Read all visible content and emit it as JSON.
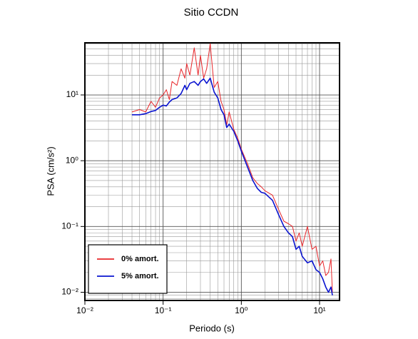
{
  "chart_data": {
    "type": "line",
    "title": "Sitio CCDN",
    "xlabel": "Periodo (s)",
    "ylabel": "PSA (cm/s²)",
    "xscale": "log",
    "yscale": "log",
    "grid": true,
    "legend": "lower left",
    "xlim": [
      0.01,
      18
    ],
    "ylim": [
      0.0075,
      62
    ],
    "xticks": [
      {
        "value": 0.01,
        "label": "10⁻²"
      },
      {
        "value": 0.1,
        "label": "10⁻¹"
      },
      {
        "value": 1,
        "label": "10⁰"
      },
      {
        "value": 10,
        "label": "10¹"
      }
    ],
    "yticks": [
      {
        "value": 0.01,
        "label": "10⁻²"
      },
      {
        "value": 0.1,
        "label": "10⁻¹"
      },
      {
        "value": 1,
        "label": "10⁰"
      },
      {
        "value": 10,
        "label": "10¹"
      }
    ],
    "x": [
      0.04,
      0.05,
      0.06,
      0.07,
      0.08,
      0.09,
      0.1,
      0.11,
      0.12,
      0.13,
      0.15,
      0.17,
      0.19,
      0.2,
      0.22,
      0.25,
      0.28,
      0.3,
      0.33,
      0.36,
      0.4,
      0.45,
      0.5,
      0.55,
      0.6,
      0.65,
      0.7,
      0.8,
      0.9,
      1.0,
      1.2,
      1.4,
      1.6,
      1.8,
      2.0,
      2.5,
      3.0,
      3.5,
      4.0,
      4.5,
      5.0,
      5.5,
      6,
      7,
      8,
      9,
      10,
      11,
      12,
      13,
      14,
      14.6
    ],
    "series": [
      {
        "name": "0% amort.",
        "color": "#e8262a",
        "width": 1,
        "values": [
          5.5,
          6,
          5.5,
          8,
          6.5,
          9,
          10,
          12,
          8.5,
          16,
          14,
          25,
          18,
          30,
          20,
          52,
          20,
          40,
          18,
          25,
          60,
          13,
          16,
          8,
          6,
          3.5,
          5.5,
          3,
          2.2,
          1.5,
          0.9,
          0.55,
          0.45,
          0.4,
          0.35,
          0.3,
          0.18,
          0.12,
          0.11,
          0.1,
          0.06,
          0.08,
          0.05,
          0.1,
          0.045,
          0.05,
          0.025,
          0.03,
          0.018,
          0.02,
          0.032,
          0.01
        ]
      },
      {
        "name": "5% amort.",
        "color": "#0a14d0",
        "width": 1.6,
        "values": [
          5.0,
          5.0,
          5.2,
          5.6,
          5.8,
          6.5,
          7.0,
          6.8,
          7.8,
          8.5,
          9.0,
          10.5,
          14,
          12,
          15,
          16,
          14,
          16,
          17.5,
          15,
          18,
          11,
          9,
          6,
          5,
          3.2,
          3.6,
          2.8,
          2,
          1.4,
          0.8,
          0.5,
          0.38,
          0.33,
          0.32,
          0.25,
          0.15,
          0.1,
          0.08,
          0.07,
          0.045,
          0.05,
          0.035,
          0.028,
          0.03,
          0.022,
          0.02,
          0.016,
          0.012,
          0.01,
          0.012,
          0.009
        ]
      }
    ]
  }
}
